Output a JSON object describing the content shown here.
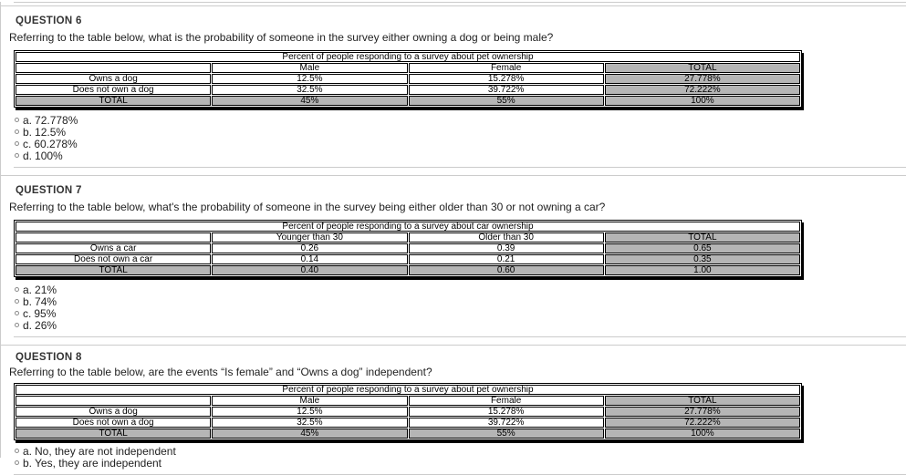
{
  "colors": {
    "total_cell_bg": "#b5b5b5",
    "table_border": "#000000",
    "divider": "#cccccc",
    "heading_text": "#333333",
    "body_text": "#1f1f1f"
  },
  "icons": {
    "radio_unselected": "circle-outline"
  },
  "questions": [
    {
      "heading": "QUESTION 6",
      "prompt": "Referring to the table below, what is the probability of someone in the survey either owning a dog or being male?",
      "table": {
        "caption": "Percent of people responding to a survey about pet ownership",
        "columns": [
          "",
          "Male",
          "Female",
          "TOTAL"
        ],
        "rows": [
          {
            "label": "Owns a dog",
            "values": [
              "12.5%",
              "15.278%",
              "27.778%"
            ],
            "is_total": false
          },
          {
            "label": "Does not own a dog",
            "values": [
              "32.5%",
              "39.722%",
              "72.222%"
            ],
            "is_total": false
          },
          {
            "label": "TOTAL",
            "values": [
              "45%",
              "55%",
              "100%"
            ],
            "is_total": true
          }
        ]
      },
      "options": [
        {
          "key": "a.",
          "label": "72.778%"
        },
        {
          "key": "b.",
          "label": "12.5%"
        },
        {
          "key": "c.",
          "label": "60.278%"
        },
        {
          "key": "d.",
          "label": "100%"
        }
      ]
    },
    {
      "heading": "QUESTION 7",
      "prompt": "Referring to the table below, what's the probability of someone in the survey being either older than 30 or not owning a car?",
      "table": {
        "caption": "Percent of people responding to a survey about car ownership",
        "columns": [
          "",
          "Younger than 30",
          "Older than 30",
          "TOTAL"
        ],
        "rows": [
          {
            "label": "Owns a car",
            "values": [
              "0.26",
              "0.39",
              "0.65"
            ],
            "is_total": false
          },
          {
            "label": "Does not own a car",
            "values": [
              "0.14",
              "0.21",
              "0.35"
            ],
            "is_total": false
          },
          {
            "label": "TOTAL",
            "values": [
              "0.40",
              "0.60",
              "1.00"
            ],
            "is_total": true
          }
        ]
      },
      "options": [
        {
          "key": "a.",
          "label": "21%"
        },
        {
          "key": "b.",
          "label": "74%"
        },
        {
          "key": "c.",
          "label": "95%"
        },
        {
          "key": "d.",
          "label": "26%"
        }
      ]
    },
    {
      "heading": "QUESTION 8",
      "prompt": "Referring to the table below, are the events “Is female” and “Owns a dog” independent?",
      "table": {
        "caption": "Percent of people responding to a survey about pet ownership",
        "columns": [
          "",
          "Male",
          "Female",
          "TOTAL"
        ],
        "rows": [
          {
            "label": "Owns a dog",
            "values": [
              "12.5%",
              "15.278%",
              "27.778%"
            ],
            "is_total": false
          },
          {
            "label": "Does not own a dog",
            "values": [
              "32.5%",
              "39.722%",
              "72.222%"
            ],
            "is_total": false
          },
          {
            "label": "TOTAL",
            "values": [
              "45%",
              "55%",
              "100%"
            ],
            "is_total": true
          }
        ]
      },
      "options": [
        {
          "key": "a.",
          "label": "No, they are not independent"
        },
        {
          "key": "b.",
          "label": "Yes, they are independent"
        }
      ]
    }
  ]
}
